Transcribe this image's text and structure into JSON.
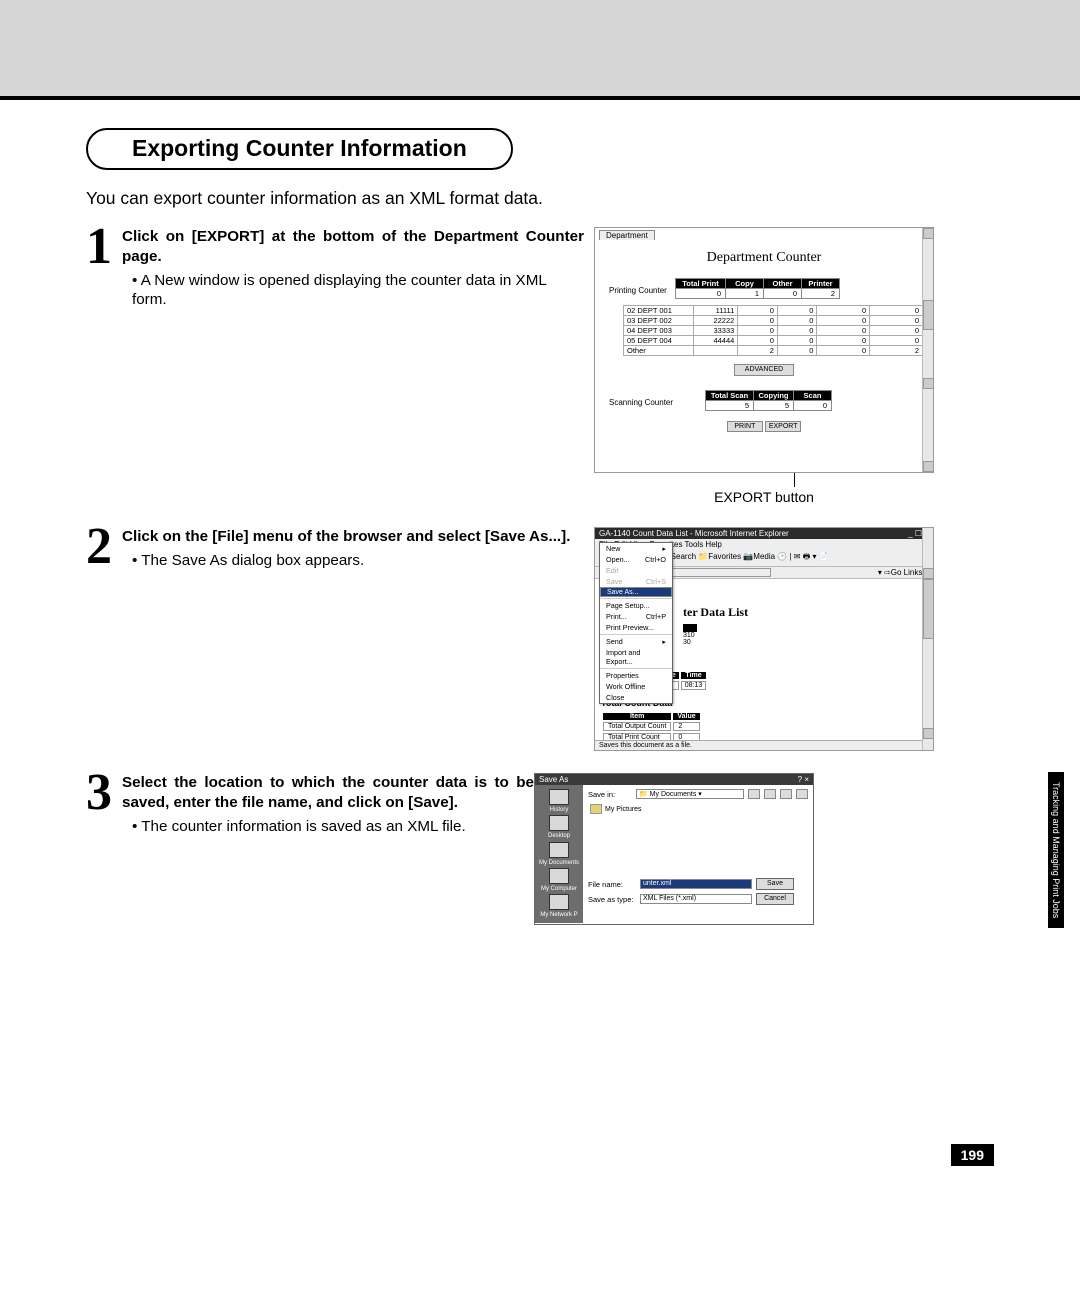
{
  "page": {
    "title": "Exporting Counter Information",
    "intro": "You can export counter information as an XML format data.",
    "page_number": "199",
    "sidetab_line1": "Tracking and",
    "sidetab_line2": "Managing Print Jobs"
  },
  "step1": {
    "bold": "Click on [EXPORT] at the bottom of the Department Counter page.",
    "bullet": "A New window is opened displaying the counter data in XML form.",
    "export_label": "EXPORT button"
  },
  "step2": {
    "bold": "Click on the [File] menu of the browser and select [Save As...].",
    "bullet": "The Save As dialog box appears."
  },
  "step3": {
    "bold": "Select the location to which the counter data is to be saved, enter the file name, and click on [Save].",
    "bullet": "The counter information is saved as an XML file."
  },
  "shot1": {
    "tab": "Department",
    "title": "Department Counter",
    "printing_label": "Printing Counter",
    "scanning_label": "Scanning Counter",
    "print_headers": [
      "Total Print",
      "Copy",
      "Other",
      "Printer"
    ],
    "print_values": [
      "0",
      "1",
      "0",
      "2"
    ],
    "dept_rows": [
      [
        "02 DEPT 001",
        "11111",
        "0",
        "0",
        "0",
        "0"
      ],
      [
        "03 DEPT 002",
        "22222",
        "0",
        "0",
        "0",
        "0"
      ],
      [
        "04 DEPT 003",
        "33333",
        "0",
        "0",
        "0",
        "0"
      ],
      [
        "05 DEPT 004",
        "44444",
        "0",
        "0",
        "0",
        "0"
      ],
      [
        "Other",
        "",
        "2",
        "0",
        "0",
        "2"
      ]
    ],
    "advanced_btn": "ADVANCED",
    "scan_headers": [
      "Total Scan",
      "Copying",
      "Scan"
    ],
    "scan_values": [
      "5",
      "5",
      "0"
    ],
    "print_btn": "PRINT",
    "export_btn": "EXPORT"
  },
  "shot2": {
    "titlebar": "GA-1140 Count Data List - Microsoft Internet Explorer",
    "menu": "File  Edit  View  Favorites  Tools  Help",
    "addr": "unter.xml",
    "filemenu": {
      "new": "New",
      "open": "Open...",
      "open_sc": "Ctrl+O",
      "edit": "Edit",
      "save": "Save",
      "save_sc": "Ctrl+S",
      "saveas": "Save As...",
      "pagesetup": "Page Setup...",
      "print": "Print...",
      "print_sc": "Ctrl+P",
      "printpreview": "Print Preview...",
      "send": "Send",
      "importexport": "Import and Export...",
      "properties": "Properties",
      "workoffline": "Work Offline",
      "close": "Close"
    },
    "body_title": "ter Data List",
    "date_headers": [
      "Year",
      "Month",
      "Date",
      "Time"
    ],
    "date_values": [
      "2001",
      "01",
      "15",
      "08:13"
    ],
    "section": "Total Count Data",
    "tc_headers": [
      "Item",
      "Value"
    ],
    "tc_rows": [
      [
        "Total Output Count",
        "2"
      ],
      [
        "Total Print Count",
        "0"
      ]
    ],
    "status": "Saves this document as a file.",
    "val310": "310",
    "val30": "30"
  },
  "shot3": {
    "title": "Save As",
    "savein_label": "Save in:",
    "savein_value": "My Documents",
    "folder": "My Pictures",
    "side": [
      "History",
      "Desktop",
      "My Documents",
      "My Computer",
      "My Network P"
    ],
    "filename_label": "File name:",
    "filename_value": "unter.xml",
    "saveas_label": "Save as type:",
    "saveas_value": "XML Files (*.xml)",
    "save_btn": "Save",
    "cancel_btn": "Cancel"
  }
}
